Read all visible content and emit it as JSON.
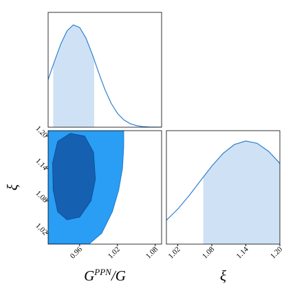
{
  "chart_data": [
    {
      "type": "density",
      "color": "#2f7fd0",
      "shade_color": "#cfe2f5",
      "x": [
        0.91,
        0.92,
        0.93,
        0.94,
        0.95,
        0.96,
        0.97,
        0.98,
        0.99,
        1.0,
        1.01,
        1.02,
        1.03,
        1.04,
        1.05,
        1.06,
        1.07,
        1.08,
        1.09
      ],
      "values": [
        0.466,
        0.642,
        0.811,
        0.94,
        0.998,
        0.973,
        0.869,
        0.712,
        0.535,
        0.369,
        0.233,
        0.135,
        0.072,
        0.035,
        0.016,
        0.006,
        0.002,
        0.001,
        0.0
      ],
      "shade": [
        0.918,
        0.983
      ],
      "xlim": [
        0.91,
        1.09
      ],
      "ylim": [
        0,
        1.12
      ]
    },
    {
      "type": "contour",
      "xlim": [
        0.91,
        1.09
      ],
      "ylim": [
        1.0,
        1.21
      ],
      "xticks": [
        0.96,
        1.02,
        1.08
      ],
      "yticks": [
        {
          "value": 1.02,
          "label": "1.02"
        },
        {
          "value": 1.08,
          "label": "1.08"
        },
        1.14,
        {
          "value": 1.2,
          "label": "1.20"
        }
      ],
      "xlabel": {
        "base": "G",
        "sup": "PPN",
        "rest": "/G"
      },
      "ylabel": "ξ",
      "contours": [
        {
          "color": "#2a9df4",
          "edge": "#1a6fc0",
          "x": [
            0.9,
            0.975,
            0.995,
            1.012,
            1.022,
            1.028,
            1.03,
            1.03,
            0.9
          ],
          "y": [
            1.0,
            1.0,
            1.02,
            1.06,
            1.1,
            1.14,
            1.18,
            1.22,
            1.22
          ]
        },
        {
          "color": "#1560b0",
          "edge": "#0d4a8c",
          "x": [
            0.94,
            0.925,
            0.918,
            0.917,
            0.925,
            0.945,
            0.968,
            0.982,
            0.985,
            0.978,
            0.96
          ],
          "y": [
            1.045,
            1.06,
            1.1,
            1.15,
            1.19,
            1.205,
            1.2,
            1.17,
            1.12,
            1.08,
            1.05
          ]
        }
      ]
    },
    {
      "type": "density",
      "color": "#2f7fd0",
      "shade_color": "#cfe2f5",
      "x": [
        1.0,
        1.02,
        1.04,
        1.06,
        1.08,
        1.1,
        1.12,
        1.14,
        1.16,
        1.18,
        1.2
      ],
      "values": [
        0.231,
        0.339,
        0.47,
        0.614,
        0.757,
        0.88,
        0.966,
        1.0,
        0.977,
        0.9,
        0.783
      ],
      "shade": [
        1.065,
        1.2
      ],
      "xlim": [
        1.0,
        1.2
      ],
      "ylim": [
        0,
        1.1
      ],
      "xticks": [
        1.02,
        1.08,
        1.14,
        {
          "value": 1.2,
          "label": "1.20"
        }
      ],
      "xlabel": "ξ"
    }
  ]
}
